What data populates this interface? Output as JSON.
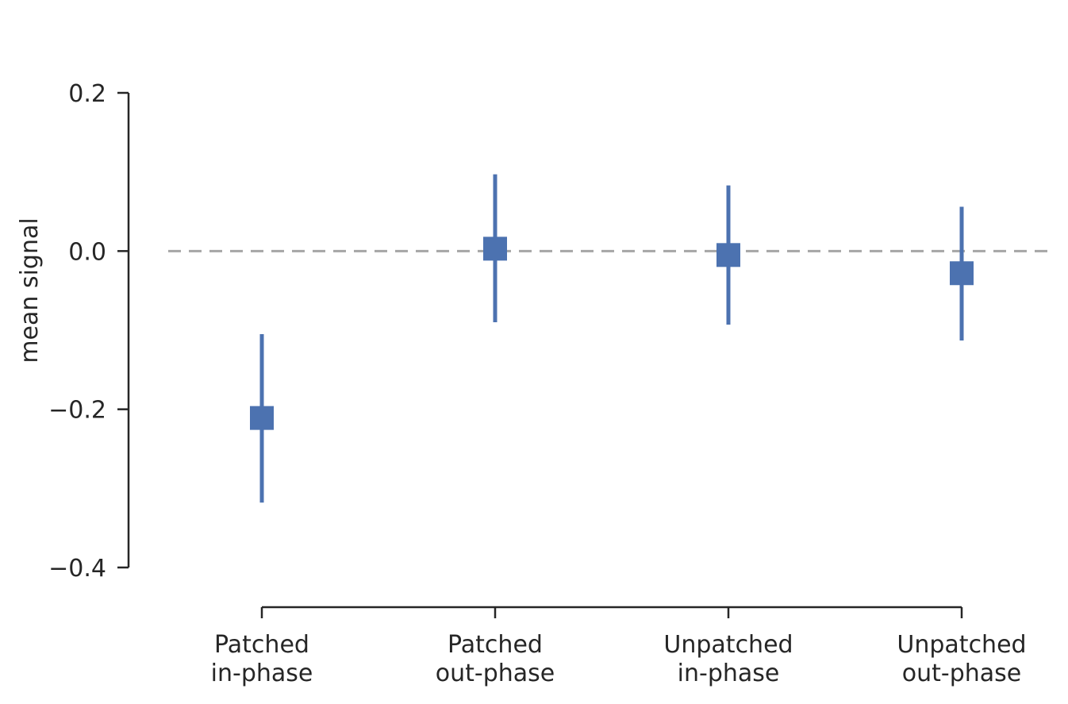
{
  "chart_data": {
    "type": "scatter",
    "title": "",
    "xlabel": "",
    "ylabel": "mean signal",
    "categories": [
      [
        "Patched",
        "in-phase"
      ],
      [
        "Patched",
        "out-phase"
      ],
      [
        "Unpatched",
        "in-phase"
      ],
      [
        "Unpatched",
        "out-phase"
      ]
    ],
    "series": [
      {
        "values": [
          -0.211,
          0.003,
          -0.005,
          -0.028
        ],
        "err_low": [
          -0.318,
          -0.09,
          -0.093,
          -0.113
        ],
        "err_high": [
          -0.105,
          0.097,
          0.083,
          0.056
        ],
        "marker": "square"
      }
    ],
    "ylim": [
      -0.4,
      0.2
    ],
    "yticks": [
      0.2,
      0.0,
      -0.2,
      -0.4
    ],
    "ytick_labels": [
      "0.2",
      "0.0",
      "−0.2",
      "−0.4"
    ],
    "reference_line": {
      "y": 0.0,
      "style": "dashed"
    },
    "grid": false,
    "legend": "none",
    "colors": {
      "series": "#4c72b0",
      "reference": "#a6a6a6",
      "axis": "#262626"
    }
  }
}
